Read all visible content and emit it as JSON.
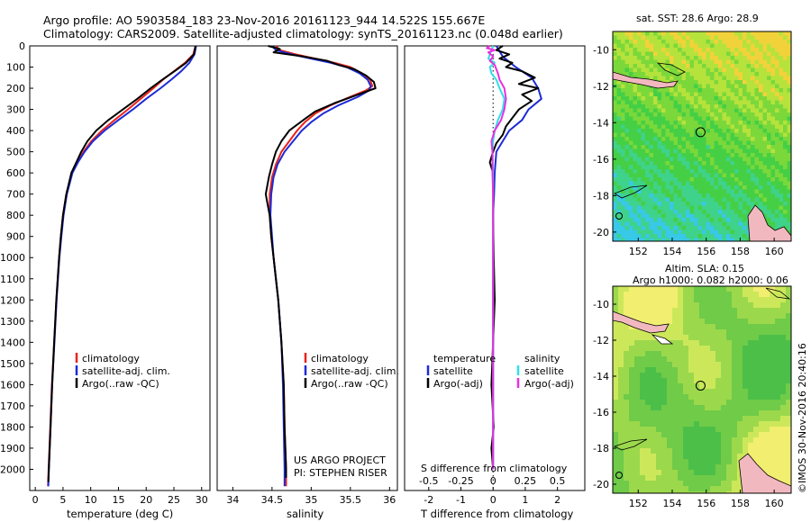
{
  "header": {
    "line1": "Argo profile: AO 5903584_183 23-Nov-2016 20161123_944 14.522S 155.667E",
    "line2": "Climatology: CARS2009. Satellite-adjusted climatology: synTS_20161123.nc (0.048d earlier)"
  },
  "depth_ticks": [
    0,
    100,
    200,
    300,
    400,
    500,
    600,
    700,
    800,
    900,
    1000,
    1100,
    1200,
    1300,
    1400,
    1500,
    1600,
    1700,
    1800,
    1900,
    2000
  ],
  "colors": {
    "climatology": "#e8231c",
    "satellite": "#1d2bd6",
    "argo": "#000000",
    "sal_satellite": "#2fe0e8",
    "sal_argo": "#e830e0"
  },
  "chart_data": [
    {
      "type": "line",
      "xlabel": "temperature (deg C)",
      "xticks": [
        0,
        5,
        10,
        15,
        20,
        25,
        30
      ],
      "xlim": [
        -1,
        31.5
      ],
      "ylim": [
        2100,
        0
      ],
      "legend": [
        "climatology",
        "satellite-adj. clim.",
        "Argo(..raw -QC)"
      ],
      "series": [
        {
          "name": "climatology",
          "depth": [
            0,
            40,
            80,
            120,
            160,
            200,
            250,
            300,
            350,
            400,
            450,
            500,
            550,
            600,
            700,
            800,
            900,
            1000,
            1200,
            1400,
            1600,
            1800,
            2000,
            2080
          ],
          "values": [
            28.9,
            28.5,
            27.0,
            25.0,
            23.0,
            21.3,
            19.0,
            16.7,
            14.3,
            12.0,
            10.1,
            8.7,
            7.6,
            6.6,
            5.6,
            5.0,
            4.6,
            4.3,
            3.8,
            3.4,
            3.0,
            2.7,
            2.4,
            2.3
          ]
        },
        {
          "name": "satellite-adj. clim.",
          "depth": [
            0,
            40,
            80,
            120,
            160,
            200,
            250,
            300,
            350,
            400,
            450,
            500,
            550,
            600,
            700,
            800,
            900,
            1000,
            1200,
            1400,
            1600,
            1800,
            2000,
            2080
          ],
          "values": [
            29.0,
            28.7,
            27.8,
            26.3,
            24.5,
            22.6,
            20.0,
            17.6,
            15.0,
            12.5,
            10.4,
            8.9,
            7.7,
            6.7,
            5.7,
            5.1,
            4.7,
            4.35,
            3.85,
            3.45,
            3.05,
            2.75,
            2.45,
            2.35
          ]
        },
        {
          "name": "Argo(..raw -QC)",
          "depth": [
            0,
            40,
            80,
            120,
            160,
            200,
            250,
            300,
            350,
            400,
            450,
            500,
            550,
            600,
            700,
            800,
            900,
            1000,
            1200,
            1400,
            1600,
            1800,
            2000,
            2060
          ],
          "values": [
            28.9,
            28.6,
            27.2,
            25.1,
            22.9,
            20.8,
            18.4,
            15.8,
            13.2,
            11.0,
            9.4,
            8.3,
            7.4,
            6.5,
            5.6,
            5.0,
            4.6,
            4.3,
            3.8,
            3.4,
            3.05,
            2.75,
            2.45,
            2.35
          ]
        }
      ]
    },
    {
      "type": "line",
      "xlabel": "salinity",
      "xticks": [
        34,
        34.5,
        35,
        35.5,
        36
      ],
      "xlim": [
        33.8,
        36.1
      ],
      "ylim": [
        2100,
        0
      ],
      "legend": [
        "climatology",
        "satellite-adj. clim.",
        "Argo(..raw -QC)"
      ],
      "series": [
        {
          "name": "climatology",
          "depth": [
            0,
            20,
            40,
            60,
            80,
            100,
            130,
            160,
            190,
            210,
            240,
            280,
            320,
            360,
            400,
            450,
            500,
            560,
            620,
            700,
            800,
            900,
            1000,
            1100,
            1200,
            1400,
            1600,
            1800,
            2000,
            2080
          ],
          "values": [
            34.55,
            34.6,
            34.8,
            35.05,
            35.3,
            35.5,
            35.65,
            35.75,
            35.78,
            35.7,
            35.5,
            35.25,
            35.05,
            34.92,
            34.82,
            34.72,
            34.62,
            34.55,
            34.5,
            34.47,
            34.47,
            34.49,
            34.52,
            34.55,
            34.58,
            34.62,
            34.65,
            34.66,
            34.68,
            34.68
          ]
        },
        {
          "name": "satellite-adj. clim.",
          "depth": [
            0,
            20,
            40,
            60,
            80,
            100,
            130,
            160,
            190,
            210,
            240,
            280,
            320,
            360,
            400,
            450,
            500,
            560,
            620,
            700,
            800,
            900,
            1000,
            1100,
            1200,
            1400,
            1600,
            1800,
            2000,
            2080
          ],
          "values": [
            34.5,
            34.55,
            34.75,
            35.0,
            35.25,
            35.45,
            35.62,
            35.72,
            35.76,
            35.74,
            35.6,
            35.35,
            35.15,
            35.0,
            34.88,
            34.77,
            34.66,
            34.57,
            34.52,
            34.49,
            34.48,
            34.5,
            34.52,
            34.55,
            34.58,
            34.62,
            34.64,
            34.65,
            34.66,
            34.66
          ]
        },
        {
          "name": "Argo(..raw -QC)",
          "depth": [
            0,
            15,
            30,
            50,
            70,
            90,
            110,
            140,
            170,
            200,
            230,
            270,
            310,
            350,
            400,
            450,
            500,
            560,
            620,
            700,
            760,
            800,
            900,
            1000,
            1100,
            1200,
            1400,
            1600,
            1800,
            2000,
            2040
          ],
          "values": [
            34.45,
            34.6,
            34.52,
            34.9,
            35.2,
            35.35,
            35.55,
            35.7,
            35.8,
            35.82,
            35.6,
            35.3,
            35.05,
            34.9,
            34.72,
            34.62,
            34.55,
            34.5,
            34.46,
            34.42,
            34.45,
            34.47,
            34.49,
            34.52,
            34.55,
            34.58,
            34.62,
            34.65,
            34.66,
            34.68,
            34.68
          ]
        }
      ]
    },
    {
      "type": "line",
      "xlabel_top": "S difference from climatology",
      "xticks_top": [
        -0.5,
        -0.25,
        0,
        0.25,
        0.5
      ],
      "xlabel": "T difference from climatology",
      "xticks": [
        -2,
        -1,
        0,
        1,
        2
      ],
      "xlim": [
        -2.75,
        2.85
      ],
      "ylim": [
        2100,
        0
      ],
      "legend_t_title": "temperature",
      "legend_s_title": "salinity",
      "legend_t": [
        "satellite",
        "Argo(-adj)"
      ],
      "legend_s": [
        "satellite",
        "Argo(-adj)"
      ],
      "series": [
        {
          "name": "T satellite",
          "depth": [
            0,
            50,
            100,
            150,
            200,
            250,
            300,
            350,
            400,
            450,
            500,
            600,
            700,
            800,
            1000,
            1200,
            1400,
            1600,
            1800,
            2000
          ],
          "values": [
            0.1,
            0.3,
            0.7,
            1.2,
            1.4,
            1.5,
            1.1,
            0.9,
            0.5,
            0.3,
            0.1,
            0.05,
            0.03,
            0.0,
            0.0,
            0.0,
            0.0,
            0.0,
            0.0,
            0.0
          ]
        },
        {
          "name": "T Argo(-adj)",
          "depth": [
            0,
            20,
            40,
            60,
            80,
            100,
            120,
            150,
            180,
            200,
            230,
            260,
            300,
            340,
            380,
            420,
            460,
            500,
            550,
            600,
            700,
            800,
            1000,
            1200,
            1400,
            1600,
            1800,
            1900,
            2000
          ],
          "values": [
            0.3,
            0.1,
            0.5,
            0.2,
            0.6,
            0.4,
            0.9,
            1.3,
            0.8,
            1.4,
            0.9,
            1.2,
            0.8,
            0.6,
            0.4,
            0.3,
            0.1,
            0.0,
            -0.1,
            0.0,
            0.0,
            0.0,
            0.02,
            0.05,
            0.0,
            -0.05,
            0.02,
            -0.05,
            0.0
          ]
        },
        {
          "name": "S satellite",
          "depth": [
            0,
            40,
            60,
            80,
            100,
            130,
            160,
            200,
            250,
            300,
            350,
            400,
            450,
            500,
            600,
            700,
            800,
            1000,
            1200,
            1400,
            1600,
            1800,
            2000
          ],
          "values": [
            0.0,
            -0.1,
            -0.15,
            0.05,
            -0.1,
            -0.05,
            0.1,
            0.2,
            0.35,
            0.3,
            0.15,
            0.05,
            0.0,
            -0.02,
            0.0,
            0.0,
            0.0,
            0.0,
            0.0,
            0.0,
            0.0,
            0.0,
            0.0
          ]
        },
        {
          "name": "S Argo(-adj)",
          "depth": [
            0,
            10,
            20,
            30,
            50,
            70,
            90,
            110,
            130,
            160,
            200,
            250,
            300,
            350,
            400,
            450,
            500,
            600,
            700,
            800,
            1000,
            1200,
            1400,
            1600,
            1800,
            2000
          ],
          "values": [
            -0.1,
            -0.2,
            0.05,
            -0.15,
            0.0,
            -0.1,
            0.05,
            0.1,
            0.15,
            0.2,
            0.35,
            0.4,
            0.35,
            0.25,
            0.05,
            -0.05,
            -0.02,
            -0.02,
            0.0,
            0.0,
            0.0,
            0.0,
            0.0,
            0.0,
            0.0,
            0.0
          ]
        }
      ]
    },
    {
      "type": "heatmap",
      "title": "sat. SST: 28.6 Argo: 28.9",
      "xticks": [
        152,
        154,
        156,
        158,
        160
      ],
      "yticks": [
        -10,
        -12,
        -14,
        -16,
        -18,
        -20
      ],
      "xlim": [
        150.5,
        161
      ],
      "ylim": [
        -20.5,
        -9
      ]
    },
    {
      "type": "heatmap",
      "title_line1": "Altim. SLA: 0.15",
      "title_line2": "Argo h1000: 0.082 h2000: 0.06",
      "xticks": [
        152,
        154,
        156,
        158,
        160
      ],
      "yticks": [
        -10,
        -12,
        -14,
        -16,
        -18,
        -20
      ],
      "xlim": [
        150.5,
        161
      ],
      "ylim": [
        -20.5,
        -9
      ]
    }
  ],
  "annotations": {
    "project_line1": "US ARGO PROJECT",
    "project_line2": "PI: STEPHEN RISER",
    "credit": "©IMOS 30-Nov-2016 20:40:16"
  }
}
